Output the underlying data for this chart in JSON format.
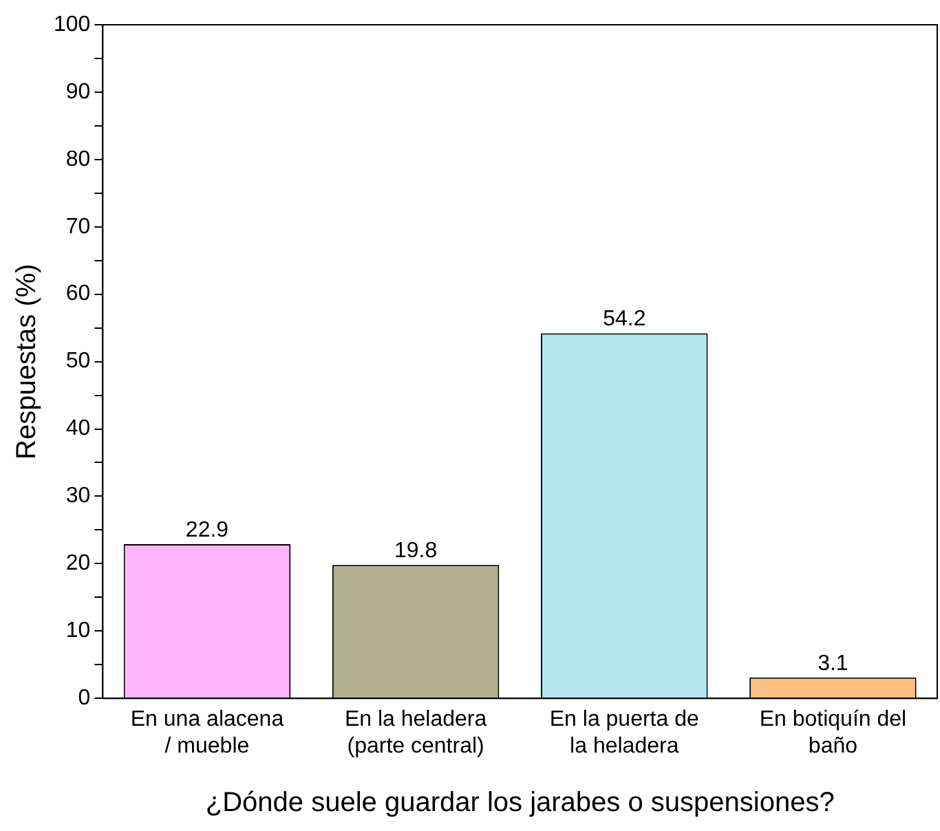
{
  "chart_data": {
    "type": "bar",
    "xlabel": "¿Dónde suele guardar los jarabes o suspensiones?",
    "ylabel": "Respuestas (%)",
    "categories": [
      "En una alacena\n/ mueble",
      "En la heladera\n(parte central)",
      "En la puerta de\nla heladera",
      "En botiquín del\nbaño"
    ],
    "values": [
      22.9,
      19.8,
      54.2,
      3.1
    ],
    "colors": [
      "#ffb3ff",
      "#b0b08e",
      "#b3e6ee",
      "#ffc080"
    ],
    "ylim": [
      0,
      100
    ],
    "yticks": [
      0,
      {
        "value": 5,
        "label": null
      },
      10,
      {
        "value": 15,
        "label": null
      },
      20,
      {
        "value": 25,
        "label": null
      },
      30,
      {
        "value": 35,
        "label": null
      },
      40,
      {
        "value": 45,
        "label": null
      },
      50,
      {
        "value": 55,
        "label": null
      },
      60,
      {
        "value": 65,
        "label": null
      },
      70,
      {
        "value": 75,
        "label": null
      },
      80,
      {
        "value": 85,
        "label": null
      },
      90,
      {
        "value": 95,
        "label": null
      },
      100
    ],
    "data_labels": true,
    "grid": false,
    "legend": false
  }
}
